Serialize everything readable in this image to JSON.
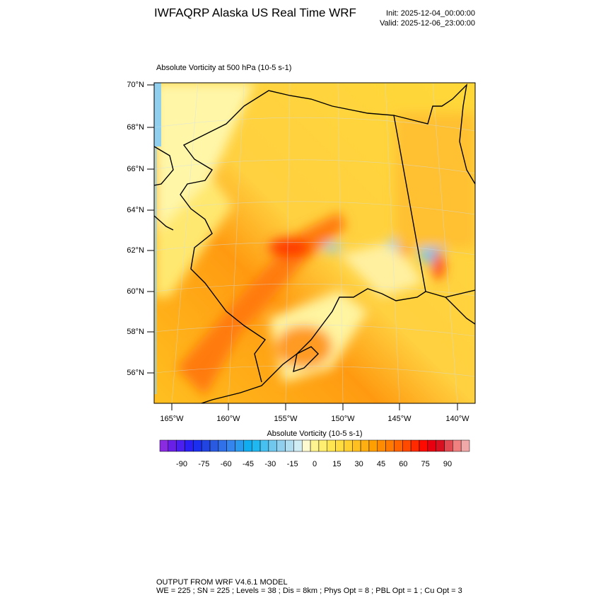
{
  "header": {
    "title": "IWFAQRP Alaska US Real Time WRF",
    "init": "Init: 2025-12-04_00:00:00",
    "valid": "Valid: 2025-12-06_23:00:00"
  },
  "map": {
    "subtitle": "Absolute Vorticity at 500 hPa   (10-5 s-1)",
    "lat_labels": [
      "70°N",
      "68°N",
      "66°N",
      "64°N",
      "62°N",
      "60°N",
      "58°N",
      "56°N"
    ],
    "lon_labels": [
      "165°W",
      "160°W",
      "155°W",
      "150°W",
      "145°W",
      "140°W"
    ]
  },
  "colorbar": {
    "title": "Absolute Vorticity  (10-5 s-1)",
    "colors": [
      "#8a2be2",
      "#6a1fe8",
      "#4b1ff0",
      "#2a1ff5",
      "#1a2ff0",
      "#2244e0",
      "#2a5ae0",
      "#3070e8",
      "#3585ee",
      "#2a9aee",
      "#10aef0",
      "#20b8f0",
      "#45c0f0",
      "#70c8ee",
      "#90d0ee",
      "#b0def0",
      "#d0ecf4",
      "#fffad0",
      "#fff490",
      "#ffee70",
      "#ffe650",
      "#ffdc40",
      "#ffd030",
      "#ffc020",
      "#ffb010",
      "#ffa000",
      "#ff8c00",
      "#ff7a00",
      "#ff6400",
      "#ff4a00",
      "#ff2a00",
      "#ff0a00",
      "#e80010",
      "#d81020",
      "#e04a50",
      "#f08080",
      "#f0a8a8"
    ],
    "ticks": [
      -90,
      -75,
      -60,
      -45,
      -30,
      -15,
      0,
      15,
      30,
      45,
      60,
      75,
      90
    ]
  },
  "footer": {
    "line1": "OUTPUT FROM WRF V4.6.1 MODEL",
    "line2": "WE = 225 ; SN = 225 ; Levels = 38 ; Dis = 8km ; Phys Opt = 8 ; PBL Opt = 1 ; Cu Opt = 3"
  }
}
